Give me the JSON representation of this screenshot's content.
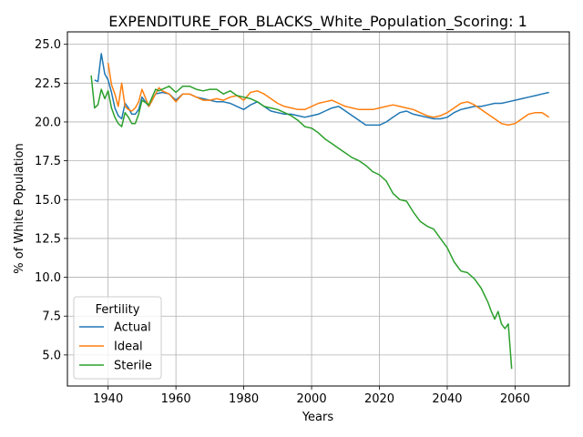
{
  "chart_data": {
    "type": "line",
    "title": "EXPENDITURE_FOR_BLACKS_White_Population_Scoring: 1",
    "xlabel": "Years",
    "ylabel": "% of White Population",
    "xlim": [
      1928,
      2076
    ],
    "ylim": [
      3.0,
      25.8
    ],
    "xticks": [
      1940,
      1960,
      1980,
      2000,
      2020,
      2040,
      2060
    ],
    "xtick_labels": [
      "1940",
      "1960",
      "1980",
      "2000",
      "2020",
      "2040",
      "2060"
    ],
    "yticks": [
      5.0,
      7.5,
      10.0,
      12.5,
      15.0,
      17.5,
      20.0,
      22.5,
      25.0
    ],
    "ytick_labels": [
      "5.0",
      "7.5",
      "10.0",
      "12.5",
      "15.0",
      "17.5",
      "20.0",
      "22.5",
      "25.0"
    ],
    "grid": true,
    "legend": {
      "title": "Fertility",
      "position": "lower-left"
    },
    "series": [
      {
        "name": "Actual",
        "color": "#1f77b4",
        "x": [
          1936,
          1937,
          1938,
          1939,
          1940,
          1941,
          1942,
          1943,
          1944,
          1945,
          1946,
          1947,
          1948,
          1949,
          1950,
          1952,
          1954,
          1956,
          1958,
          1960,
          1962,
          1964,
          1966,
          1968,
          1970,
          1972,
          1974,
          1976,
          1978,
          1980,
          1982,
          1984,
          1986,
          1988,
          1990,
          1992,
          1994,
          1996,
          1998,
          2000,
          2002,
          2004,
          2006,
          2008,
          2010,
          2012,
          2014,
          2016,
          2018,
          2020,
          2022,
          2024,
          2026,
          2028,
          2030,
          2032,
          2034,
          2036,
          2038,
          2040,
          2042,
          2044,
          2046,
          2048,
          2050,
          2052,
          2054,
          2056,
          2058,
          2060,
          2062,
          2064,
          2066,
          2068,
          2070
        ],
        "y": [
          22.7,
          22.6,
          24.4,
          23.1,
          22.7,
          21.9,
          20.9,
          20.4,
          20.2,
          21.2,
          20.9,
          20.5,
          20.5,
          20.8,
          21.6,
          21.0,
          21.8,
          21.9,
          21.8,
          21.4,
          21.8,
          21.8,
          21.6,
          21.5,
          21.4,
          21.3,
          21.3,
          21.2,
          21.0,
          20.8,
          21.1,
          21.3,
          21.0,
          20.7,
          20.6,
          20.5,
          20.5,
          20.4,
          20.3,
          20.4,
          20.5,
          20.7,
          20.9,
          21.0,
          20.7,
          20.4,
          20.1,
          19.8,
          19.8,
          19.8,
          20.0,
          20.3,
          20.6,
          20.7,
          20.5,
          20.4,
          20.3,
          20.2,
          20.2,
          20.3,
          20.6,
          20.8,
          20.9,
          21.0,
          21.0,
          21.1,
          21.2,
          21.2,
          21.3,
          21.4,
          21.5,
          21.6,
          21.7,
          21.8,
          21.9
        ]
      },
      {
        "name": "Ideal",
        "color": "#ff7f0e",
        "x": [
          1940,
          1941,
          1942,
          1943,
          1944,
          1945,
          1946,
          1947,
          1948,
          1949,
          1950,
          1952,
          1954,
          1955,
          1956,
          1958,
          1960,
          1962,
          1964,
          1966,
          1968,
          1970,
          1972,
          1974,
          1976,
          1978,
          1980,
          1982,
          1984,
          1986,
          1988,
          1990,
          1992,
          1994,
          1996,
          1998,
          2000,
          2002,
          2004,
          2006,
          2008,
          2010,
          2012,
          2014,
          2016,
          2018,
          2020,
          2022,
          2024,
          2026,
          2028,
          2030,
          2032,
          2034,
          2036,
          2038,
          2040,
          2042,
          2044,
          2046,
          2048,
          2050,
          2052,
          2054,
          2056,
          2058,
          2060,
          2062,
          2064,
          2066,
          2068,
          2070
        ],
        "y": [
          23.8,
          22.4,
          21.8,
          21.0,
          22.5,
          21.0,
          20.8,
          20.7,
          20.9,
          21.3,
          22.1,
          21.0,
          21.8,
          22.2,
          22.0,
          21.8,
          21.3,
          21.8,
          21.8,
          21.6,
          21.4,
          21.4,
          21.5,
          21.4,
          21.6,
          21.7,
          21.4,
          21.9,
          22.0,
          21.8,
          21.5,
          21.2,
          21.0,
          20.9,
          20.8,
          20.8,
          21.0,
          21.2,
          21.3,
          21.4,
          21.2,
          21.0,
          20.9,
          20.8,
          20.8,
          20.8,
          20.9,
          21.0,
          21.1,
          21.0,
          20.9,
          20.8,
          20.6,
          20.4,
          20.3,
          20.4,
          20.6,
          20.9,
          21.2,
          21.3,
          21.1,
          20.8,
          20.5,
          20.2,
          19.9,
          19.8,
          19.9,
          20.2,
          20.5,
          20.6,
          20.6,
          20.3
        ]
      },
      {
        "name": "Sterile",
        "color": "#2ca02c",
        "x": [
          1935,
          1936,
          1937,
          1938,
          1939,
          1940,
          1941,
          1942,
          1943,
          1944,
          1945,
          1946,
          1947,
          1948,
          1949,
          1950,
          1952,
          1954,
          1955,
          1956,
          1958,
          1960,
          1962,
          1964,
          1966,
          1968,
          1970,
          1972,
          1974,
          1976,
          1978,
          1980,
          1982,
          1984,
          1986,
          1988,
          1990,
          1992,
          1994,
          1996,
          1998,
          2000,
          2002,
          2004,
          2006,
          2008,
          2010,
          2012,
          2014,
          2016,
          2018,
          2020,
          2022,
          2024,
          2026,
          2028,
          2030,
          2032,
          2034,
          2036,
          2038,
          2040,
          2042,
          2044,
          2046,
          2048,
          2050,
          2052,
          2053,
          2054,
          2055,
          2056,
          2057,
          2058,
          2059
        ],
        "y": [
          23.0,
          20.9,
          21.1,
          22.1,
          21.5,
          22.0,
          20.9,
          20.3,
          19.9,
          19.7,
          20.6,
          20.3,
          19.9,
          19.9,
          20.5,
          21.4,
          21.1,
          22.1,
          22.0,
          22.1,
          22.3,
          21.9,
          22.3,
          22.3,
          22.1,
          22.0,
          22.1,
          22.1,
          21.8,
          22.0,
          21.7,
          21.6,
          21.5,
          21.3,
          21.0,
          20.9,
          20.8,
          20.6,
          20.4,
          20.1,
          19.7,
          19.6,
          19.3,
          18.9,
          18.6,
          18.3,
          18.0,
          17.7,
          17.5,
          17.2,
          16.8,
          16.6,
          16.2,
          15.4,
          15.0,
          14.9,
          14.2,
          13.6,
          13.3,
          13.1,
          12.5,
          11.9,
          11.0,
          10.4,
          10.3,
          9.9,
          9.3,
          8.4,
          7.8,
          7.3,
          7.8,
          7.0,
          6.7,
          7.0,
          4.1
        ]
      }
    ]
  }
}
